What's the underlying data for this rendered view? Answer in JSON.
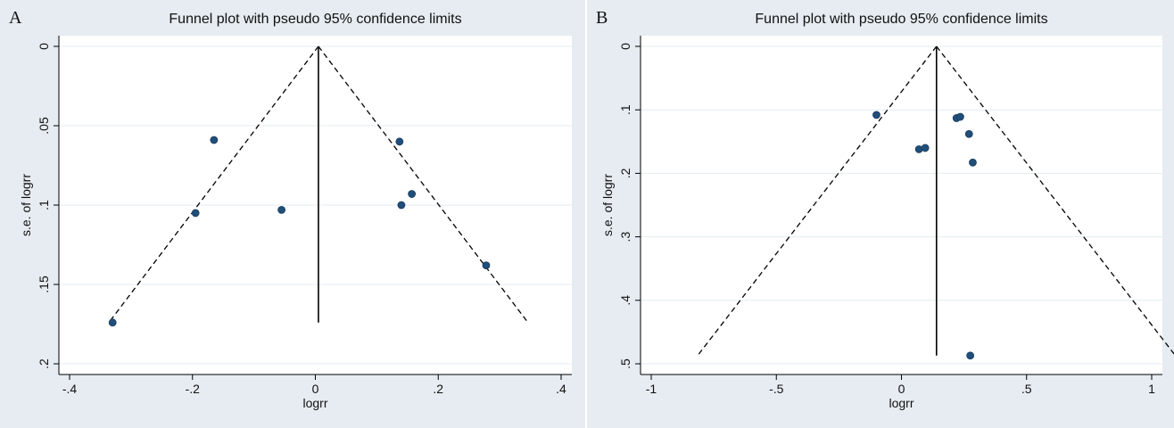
{
  "colors": {
    "outer_background": "#e6ecf1",
    "plot_background": "#ffffff",
    "gridline": "#e4ebf0",
    "marker": "#1f4e79",
    "line": "#000000"
  },
  "chart_data": [
    {
      "panel_label": "A",
      "type": "scatter",
      "title": "Funnel plot with pseudo 95% confidence limits",
      "xlabel": "logrr",
      "ylabel": "s.e. of logrr",
      "xlim": [
        -0.4,
        0.4
      ],
      "ylim": [
        0,
        0.2
      ],
      "y_reversed": true,
      "x_ticks": [
        -0.4,
        -0.2,
        0,
        0.2,
        0.4
      ],
      "x_tick_labels": [
        "-.4",
        "-.2",
        "0",
        ".2",
        ".4"
      ],
      "y_ticks": [
        0,
        0.05,
        0.1,
        0.15,
        0.2
      ],
      "y_tick_labels": [
        "0",
        ".05",
        ".1",
        ".15",
        ".2"
      ],
      "grid": true,
      "pooled_estimate": 0.005,
      "max_se": 0.174,
      "points": [
        {
          "x": -0.33,
          "y": 0.174
        },
        {
          "x": -0.195,
          "y": 0.105
        },
        {
          "x": -0.165,
          "y": 0.059
        },
        {
          "x": -0.055,
          "y": 0.103
        },
        {
          "x": 0.137,
          "y": 0.06
        },
        {
          "x": 0.14,
          "y": 0.1
        },
        {
          "x": 0.157,
          "y": 0.093
        },
        {
          "x": 0.278,
          "y": 0.138
        }
      ]
    },
    {
      "panel_label": "B",
      "type": "scatter",
      "title": "Funnel plot with pseudo 95% confidence limits",
      "xlabel": "logrr",
      "ylabel": "s.e. of logrr",
      "xlim": [
        -1,
        1
      ],
      "ylim": [
        0,
        0.5
      ],
      "y_reversed": true,
      "x_ticks": [
        -1,
        -0.5,
        0,
        0.5,
        1
      ],
      "x_tick_labels": [
        "-1",
        "-.5",
        "0",
        ".5",
        "1"
      ],
      "y_ticks": [
        0,
        0.1,
        0.2,
        0.3,
        0.4,
        0.5
      ],
      "y_tick_labels": [
        "0",
        ".1",
        ".2",
        ".3",
        ".4",
        ".5"
      ],
      "grid": true,
      "pooled_estimate": 0.14,
      "max_se": 0.487,
      "points": [
        {
          "x": -0.1,
          "y": 0.108
        },
        {
          "x": 0.07,
          "y": 0.162
        },
        {
          "x": 0.095,
          "y": 0.16
        },
        {
          "x": 0.22,
          "y": 0.113
        },
        {
          "x": 0.235,
          "y": 0.111
        },
        {
          "x": 0.27,
          "y": 0.138
        },
        {
          "x": 0.285,
          "y": 0.183
        },
        {
          "x": 0.275,
          "y": 0.487
        }
      ]
    }
  ]
}
